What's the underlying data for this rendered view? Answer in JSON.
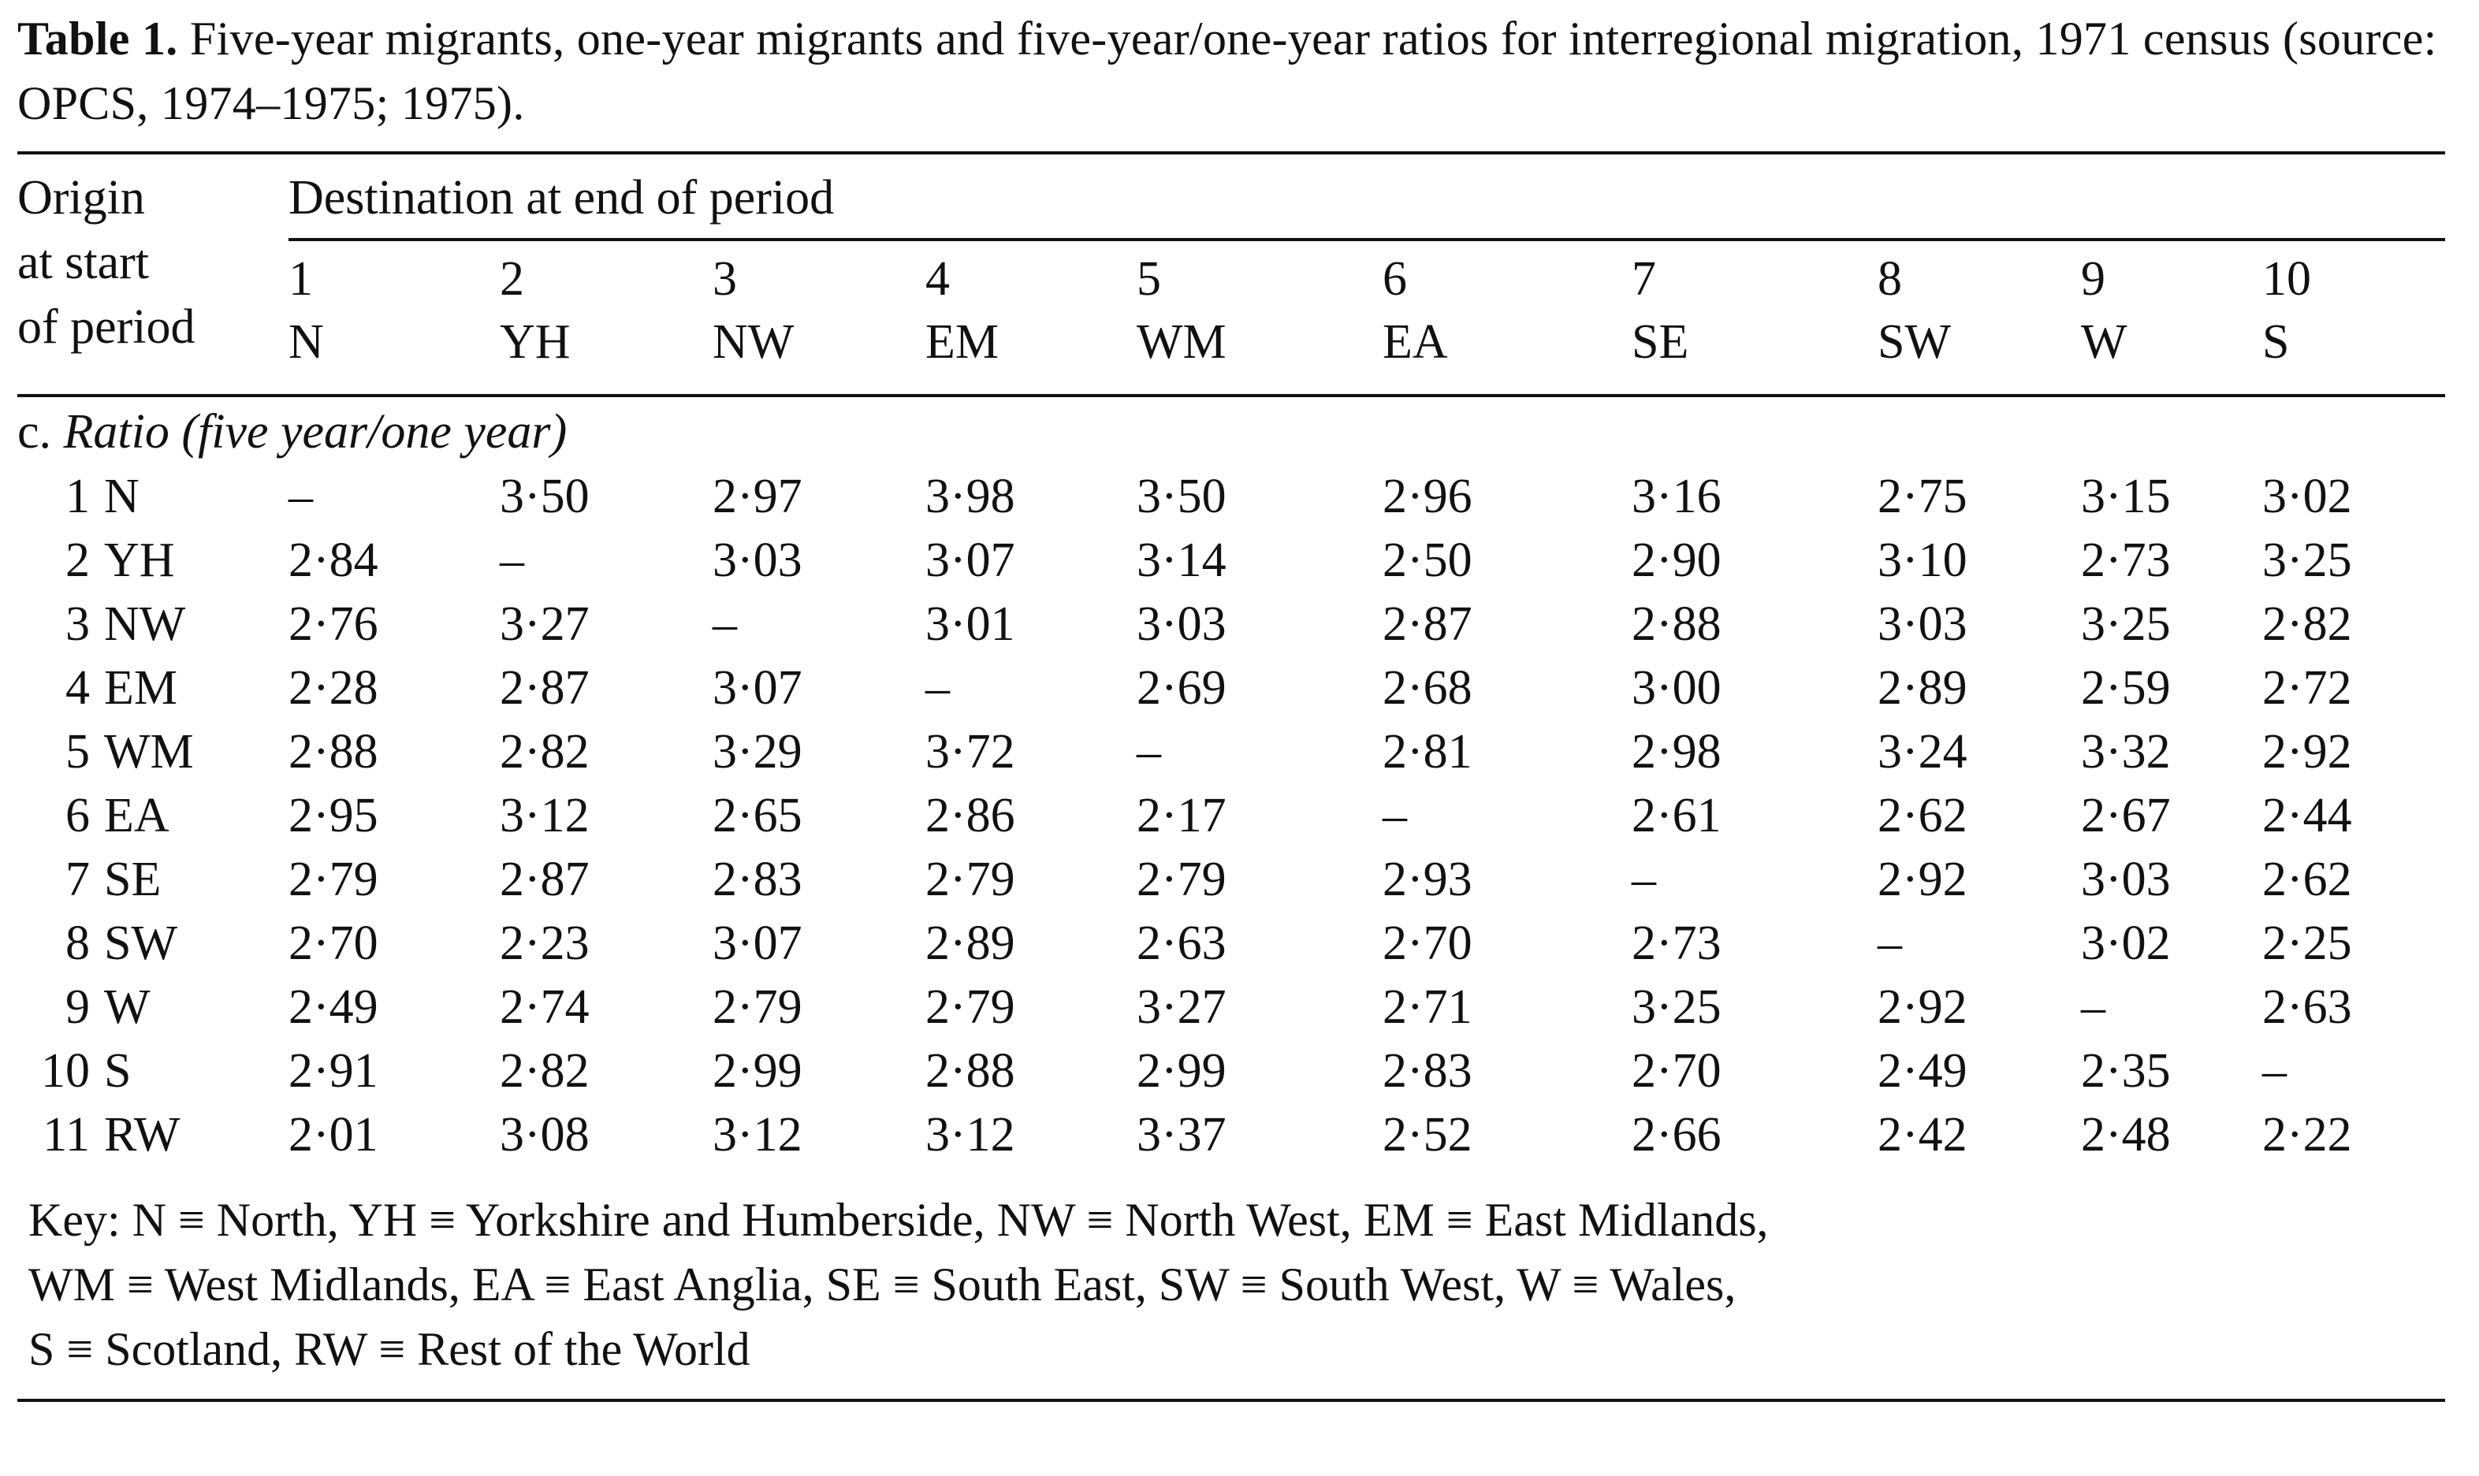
{
  "caption": {
    "label": "Table 1.",
    "text": "Five-year migrants, one-year migrants and five-year/one-year ratios for interregional migration, 1971 census (source:  OPCS, 1974–1975; 1975)."
  },
  "table": {
    "origin_header": [
      "Origin",
      "at start",
      "of period"
    ],
    "destination_header": "Destination at end of period",
    "columns": [
      {
        "num": "1",
        "abbr": "N"
      },
      {
        "num": "2",
        "abbr": "YH"
      },
      {
        "num": "3",
        "abbr": "NW"
      },
      {
        "num": "4",
        "abbr": "EM"
      },
      {
        "num": "5",
        "abbr": "WM"
      },
      {
        "num": "6",
        "abbr": "EA"
      },
      {
        "num": "7",
        "abbr": "SE"
      },
      {
        "num": "8",
        "abbr": "SW"
      },
      {
        "num": "9",
        "abbr": "W"
      },
      {
        "num": "10",
        "abbr": "S"
      }
    ],
    "section_prefix": "c.",
    "section_title": "Ratio (five year/one year)",
    "rows": [
      {
        "num": "1",
        "abbr": "N",
        "values": [
          "–",
          "3·50",
          "2·97",
          "3·98",
          "3·50",
          "2·96",
          "3·16",
          "2·75",
          "3·15",
          "3·02"
        ]
      },
      {
        "num": "2",
        "abbr": "YH",
        "values": [
          "2·84",
          "–",
          "3·03",
          "3·07",
          "3·14",
          "2·50",
          "2·90",
          "3·10",
          "2·73",
          "3·25"
        ]
      },
      {
        "num": "3",
        "abbr": "NW",
        "values": [
          "2·76",
          "3·27",
          "–",
          "3·01",
          "3·03",
          "2·87",
          "2·88",
          "3·03",
          "3·25",
          "2·82"
        ]
      },
      {
        "num": "4",
        "abbr": "EM",
        "values": [
          "2·28",
          "2·87",
          "3·07",
          "–",
          "2·69",
          "2·68",
          "3·00",
          "2·89",
          "2·59",
          "2·72"
        ]
      },
      {
        "num": "5",
        "abbr": "WM",
        "values": [
          "2·88",
          "2·82",
          "3·29",
          "3·72",
          "–",
          "2·81",
          "2·98",
          "3·24",
          "3·32",
          "2·92"
        ]
      },
      {
        "num": "6",
        "abbr": "EA",
        "values": [
          "2·95",
          "3·12",
          "2·65",
          "2·86",
          "2·17",
          "–",
          "2·61",
          "2·62",
          "2·67",
          "2·44"
        ]
      },
      {
        "num": "7",
        "abbr": "SE",
        "values": [
          "2·79",
          "2·87",
          "2·83",
          "2·79",
          "2·79",
          "2·93",
          "–",
          "2·92",
          "3·03",
          "2·62"
        ]
      },
      {
        "num": "8",
        "abbr": "SW",
        "values": [
          "2·70",
          "2·23",
          "3·07",
          "2·89",
          "2·63",
          "2·70",
          "2·73",
          "–",
          "3·02",
          "2·25"
        ]
      },
      {
        "num": "9",
        "abbr": "W",
        "values": [
          "2·49",
          "2·74",
          "2·79",
          "2·79",
          "3·27",
          "2·71",
          "3·25",
          "2·92",
          "–",
          "2·63"
        ]
      },
      {
        "num": "10",
        "abbr": "S",
        "values": [
          "2·91",
          "2·82",
          "2·99",
          "2·88",
          "2·99",
          "2·83",
          "2·70",
          "2·49",
          "2·35",
          "–"
        ]
      },
      {
        "num": "11",
        "abbr": "RW",
        "values": [
          "2·01",
          "3·08",
          "3·12",
          "3·12",
          "3·37",
          "2·52",
          "2·66",
          "2·42",
          "2·48",
          "2·22"
        ]
      }
    ]
  },
  "key": [
    "Key:  N ≡ North,  YH ≡ Yorkshire and Humberside,  NW ≡ North West,  EM ≡ East Midlands,",
    "WM ≡ West Midlands,  EA ≡ East Anglia,  SE ≡ South East,  SW ≡ South West,  W ≡ Wales,",
    "S ≡ Scotland,  RW ≡ Rest of the World"
  ]
}
